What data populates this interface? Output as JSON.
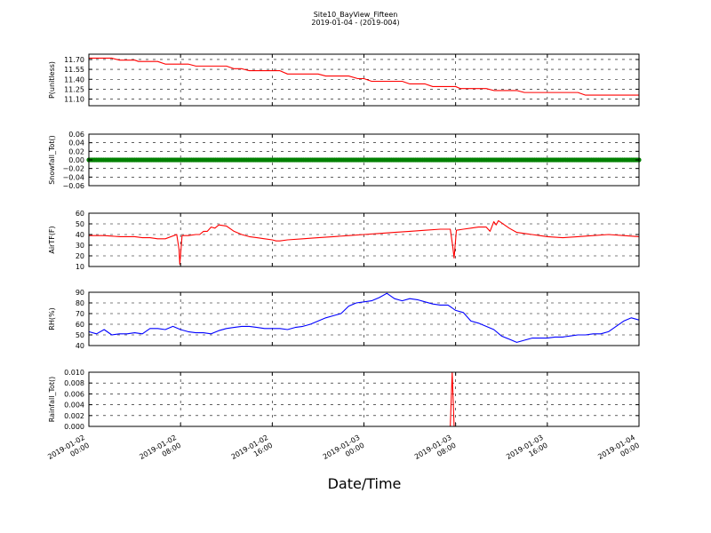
{
  "chart_data": [
    {
      "type": "line",
      "title": "Site10_BayView_Fifteen",
      "subtitle": "2019-01-04 - (2019-004)",
      "ylabel": "P(unitless)",
      "xlabel": "Date/Time",
      "color": "#ff0000",
      "ylim": [
        11.0,
        11.78
      ],
      "yticks": [
        11.1,
        11.25,
        11.4,
        11.55,
        11.7
      ],
      "ytick_labels": [
        "11.10",
        "11.25",
        "11.40",
        "11.55",
        "11.70"
      ],
      "x_hours": [
        0,
        3,
        4,
        6,
        6.5,
        9,
        10,
        13,
        14,
        18,
        19,
        20,
        21,
        25,
        26,
        30,
        31,
        34,
        35.2,
        36,
        37,
        41,
        42,
        44,
        45,
        47,
        48,
        48.6,
        48.9,
        52,
        53,
        56,
        57,
        64,
        65,
        72
      ],
      "values": [
        11.72,
        11.72,
        11.69,
        11.69,
        11.67,
        11.67,
        11.63,
        11.63,
        11.6,
        11.6,
        11.56,
        11.56,
        11.53,
        11.53,
        11.48,
        11.48,
        11.45,
        11.45,
        11.41,
        11.41,
        11.37,
        11.37,
        11.33,
        11.33,
        11.29,
        11.29,
        11.29,
        11.26,
        11.26,
        11.26,
        11.23,
        11.23,
        11.2,
        11.2,
        11.16,
        11.16
      ],
      "grid": true
    },
    {
      "type": "scatter",
      "ylabel": "Snowfall_Tot()",
      "color": "#008000",
      "ylim": [
        -0.06,
        0.06
      ],
      "yticks": [
        -0.06,
        -0.04,
        -0.02,
        0.0,
        0.02,
        0.04,
        0.06
      ],
      "ytick_labels": [
        "−0.06",
        "−0.04",
        "−0.02",
        "0.00",
        "0.02",
        "0.04",
        "0.06"
      ],
      "x_hours": [
        0,
        72
      ],
      "values": [
        0.0,
        0.0
      ],
      "grid": true
    },
    {
      "type": "line",
      "ylabel": "AirTF(F)",
      "color": "#ff0000",
      "ylim": [
        10,
        60
      ],
      "yticks": [
        10,
        20,
        30,
        40,
        50,
        60
      ],
      "ytick_labels": [
        "10",
        "20",
        "30",
        "40",
        "50",
        "60"
      ],
      "x_hours": [
        0,
        2,
        4,
        6,
        7,
        8,
        9,
        10,
        11.5,
        11.8,
        11.9,
        12.2,
        13,
        14,
        14.5,
        15,
        15.5,
        16,
        16.5,
        17,
        18,
        19,
        20,
        21,
        22,
        23,
        24,
        24.5,
        25,
        26,
        28,
        30,
        32,
        34,
        36,
        38,
        40,
        42,
        44,
        46,
        47.3,
        47.6,
        47.8,
        48.1,
        49,
        50,
        51,
        52,
        52.5,
        53,
        53.3,
        53.6,
        54,
        55,
        56,
        57,
        58,
        59,
        60,
        62,
        64,
        66,
        68,
        70,
        72
      ],
      "values": [
        39,
        39,
        38,
        38,
        37,
        37,
        36,
        36,
        40,
        26,
        12,
        39,
        39,
        40,
        40,
        43,
        43,
        47,
        46,
        49,
        48,
        43,
        40,
        38,
        37,
        36,
        35,
        34,
        34,
        35,
        36,
        37,
        38,
        39,
        40,
        41,
        42,
        43,
        44,
        45,
        45,
        30,
        18,
        44,
        45,
        46,
        47,
        47,
        43,
        52,
        49,
        53,
        51,
        46,
        42,
        41,
        40,
        39,
        38,
        37,
        38,
        39,
        40,
        39,
        38
      ],
      "grid": true
    },
    {
      "type": "line",
      "ylabel": "RH(%)",
      "color": "#0000ff",
      "ylim": [
        40,
        90
      ],
      "yticks": [
        40,
        50,
        60,
        70,
        80,
        90
      ],
      "ytick_labels": [
        "40",
        "50",
        "60",
        "70",
        "80",
        "90"
      ],
      "x_hours": [
        0,
        1,
        2,
        3,
        4,
        5,
        6,
        7,
        8,
        9,
        10,
        11,
        12,
        13,
        14,
        15,
        16,
        17,
        18,
        19,
        20,
        21,
        22,
        23,
        24,
        25,
        26,
        27,
        28,
        29,
        30,
        31,
        32,
        33,
        34,
        35,
        36,
        37,
        38,
        39,
        40,
        41,
        42,
        43,
        44,
        45,
        46,
        47,
        48,
        49,
        50,
        51,
        52,
        53,
        54,
        55,
        56,
        57,
        58,
        59,
        60,
        61,
        62,
        63,
        64,
        65,
        66,
        67,
        68,
        69,
        70,
        71,
        72
      ],
      "values": [
        53,
        51,
        55,
        50,
        51,
        51,
        52,
        51,
        56,
        56,
        55,
        58,
        55,
        53,
        52,
        52,
        51,
        54,
        56,
        57,
        58,
        58,
        57,
        56,
        56,
        56,
        55,
        57,
        58,
        60,
        63,
        66,
        68,
        70,
        77,
        80,
        81,
        82,
        85,
        89,
        84,
        82,
        84,
        83,
        81,
        79,
        78,
        78,
        73,
        71,
        63,
        61,
        58,
        55,
        49,
        46,
        43,
        45,
        47,
        47,
        47,
        48,
        48,
        49,
        50,
        50,
        51,
        51,
        53,
        58,
        63,
        66,
        64
      ],
      "grid": true
    },
    {
      "type": "line",
      "ylabel": "Rainfall_Tot()",
      "color": "#ff0000",
      "ylim": [
        0.0,
        0.01
      ],
      "yticks": [
        0.0,
        0.002,
        0.004,
        0.006,
        0.008,
        0.01
      ],
      "ytick_labels": [
        "0.000",
        "0.002",
        "0.004",
        "0.006",
        "0.008",
        "0.010"
      ],
      "x_hours": [
        0,
        47.3,
        47.55,
        47.8,
        72
      ],
      "values": [
        0.0,
        0.0,
        0.01,
        0.0,
        0.0
      ],
      "grid": true
    }
  ],
  "x_axis": {
    "range_hours": [
      0,
      72
    ],
    "tick_hours": [
      0,
      12,
      24,
      36,
      48,
      60,
      72
    ],
    "tick_labels": [
      [
        "2019-01-02",
        "00:00"
      ],
      [
        "2019-01-02",
        "08:00"
      ],
      [
        "2019-01-02",
        "16:00"
      ],
      [
        "2019-01-03",
        "00:00"
      ],
      [
        "2019-01-03",
        "08:00"
      ],
      [
        "2019-01-03",
        "16:00"
      ],
      [
        "2019-01-04",
        "00:00"
      ]
    ]
  }
}
